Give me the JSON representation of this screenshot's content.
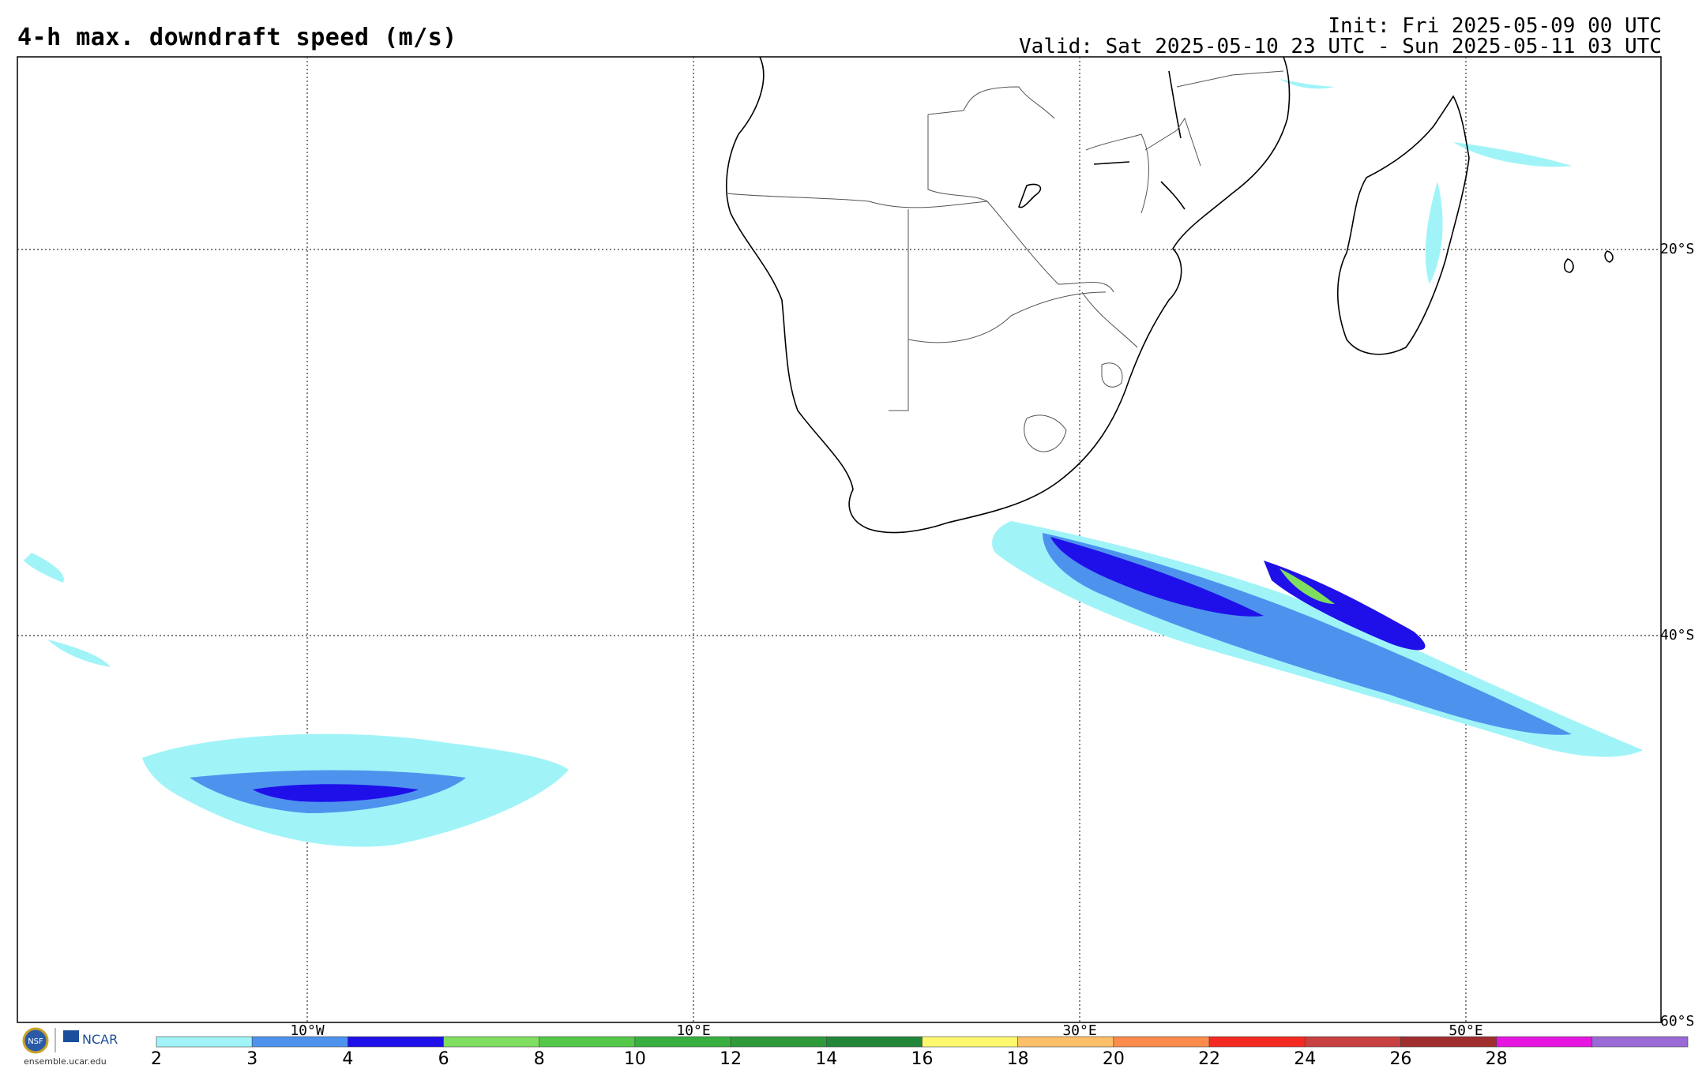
{
  "header": {
    "title": "4-h max. downdraft speed (m/s)",
    "init": "Init: Fri 2025-05-09 00 UTC",
    "valid": "Valid: Sat 2025-05-10 23 UTC - Sun 2025-05-11 03 UTC"
  },
  "axes": {
    "lon_labels": [
      "10°W",
      "10°E",
      "30°E",
      "50°E"
    ],
    "lat_labels": [
      "20°S",
      "40°S",
      "60°S"
    ]
  },
  "colorbar": {
    "ticks": [
      "2",
      "3",
      "4",
      "6",
      "8",
      "10",
      "12",
      "14",
      "16",
      "18",
      "20",
      "22",
      "24",
      "26",
      "28"
    ],
    "colors": [
      "#a0f4f8",
      "#4d93ee",
      "#1f10ea",
      "#7fdd60",
      "#55c84a",
      "#38b040",
      "#2e9a3a",
      "#23873a",
      "#fef86e",
      "#fdc068",
      "#fd8c4c",
      "#f42a22",
      "#c84040",
      "#a02e2e",
      "#e616e0",
      "#9a6ad6"
    ]
  },
  "logo": {
    "left": "NSF",
    "right": "NCAR",
    "url": "ensemble.ucar.edu"
  }
}
